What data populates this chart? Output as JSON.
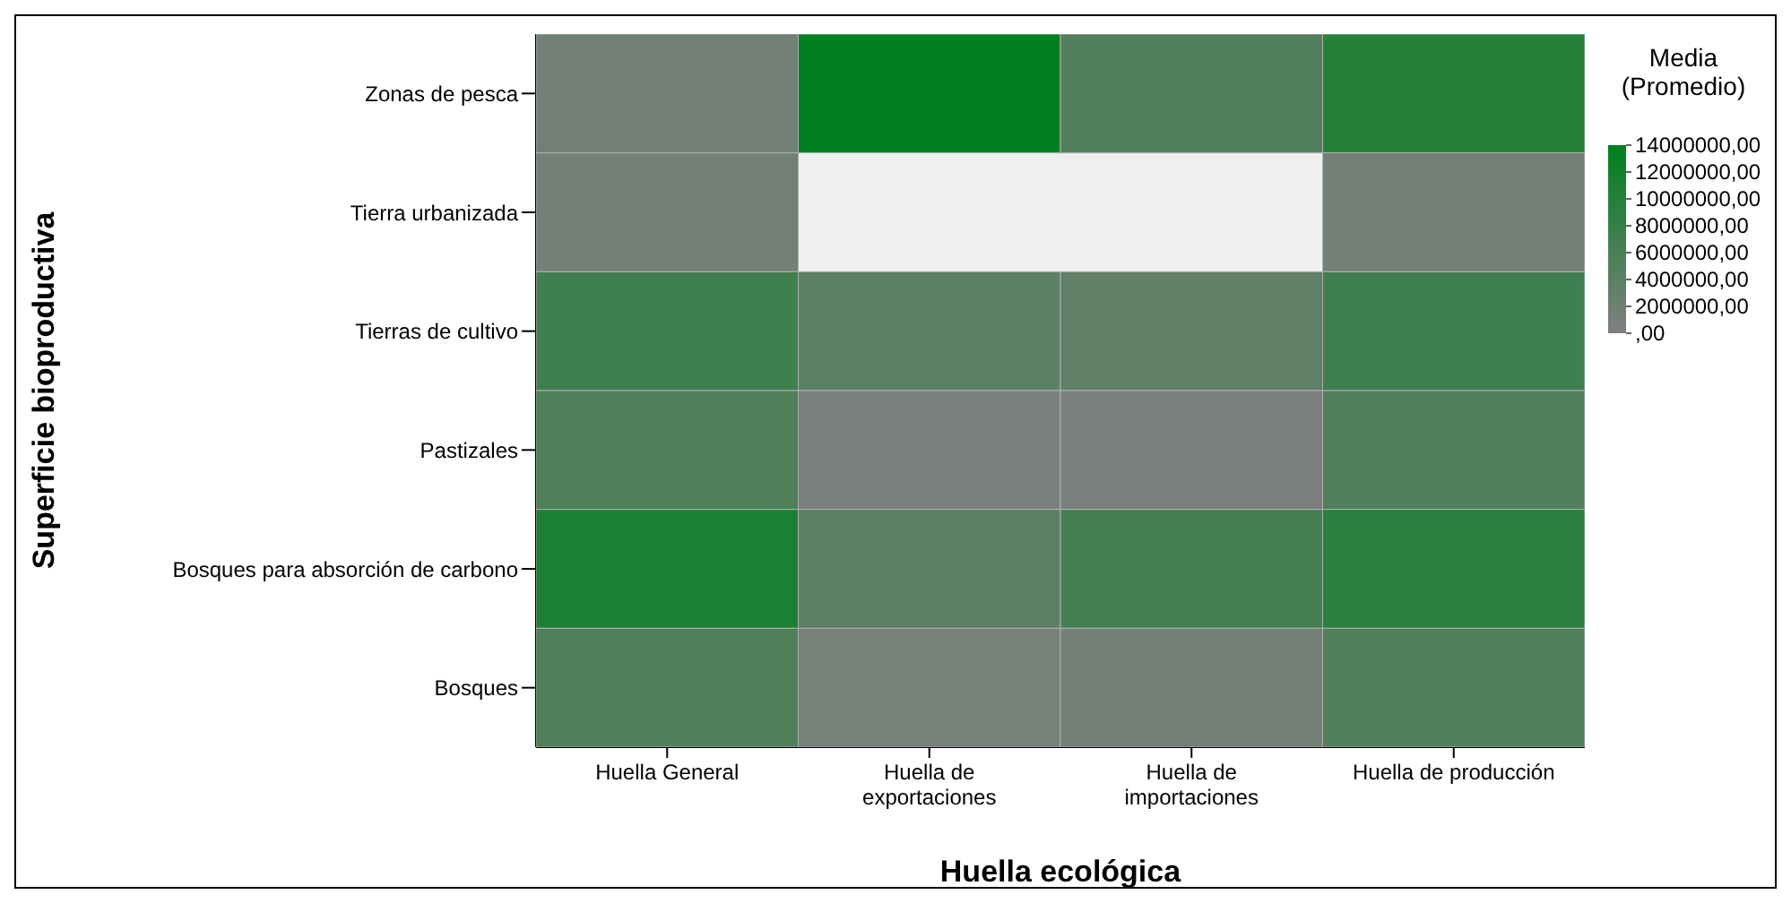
{
  "chart_data": {
    "type": "heatmap",
    "xlabel": "Huella ecológica",
    "ylabel": "Superficie bioproductiva",
    "legend_title": "Media (Promedio)",
    "categories": [
      "Huella General",
      "Huella de exportaciones",
      "Huella de importaciones",
      "Huella de producción"
    ],
    "y_categories": [
      "Zonas de pesca",
      "Tierra urbanizada",
      "Tierras de cultivo",
      "Pastizales",
      "Bosques para absorción de carbono",
      "Bosques"
    ],
    "cells": [
      [
        1500000,
        14000000,
        5000000,
        10000000
      ],
      [
        1500000,
        null,
        null,
        1500000
      ],
      [
        7000000,
        4000000,
        3500000,
        7000000
      ],
      [
        5500000,
        500000,
        500000,
        5000000
      ],
      [
        11000000,
        4000000,
        6500000,
        9500000
      ],
      [
        5500000,
        1000000,
        1500000,
        5000000
      ]
    ],
    "clim": [
      0,
      14000000
    ],
    "cticks": [
      {
        "value": 14000000,
        "label": "14000000,00"
      },
      {
        "value": 12000000,
        "label": "12000000,00"
      },
      {
        "value": 10000000,
        "label": "10000000,00"
      },
      {
        "value": 8000000,
        "label": "8000000,00"
      },
      {
        "value": 6000000,
        "label": "6000000,00"
      },
      {
        "value": 4000000,
        "label": "4000000,00"
      },
      {
        "value": 2000000,
        "label": "2000000,00"
      },
      {
        "value": 0,
        "label": ",00"
      }
    ],
    "grid": false
  }
}
